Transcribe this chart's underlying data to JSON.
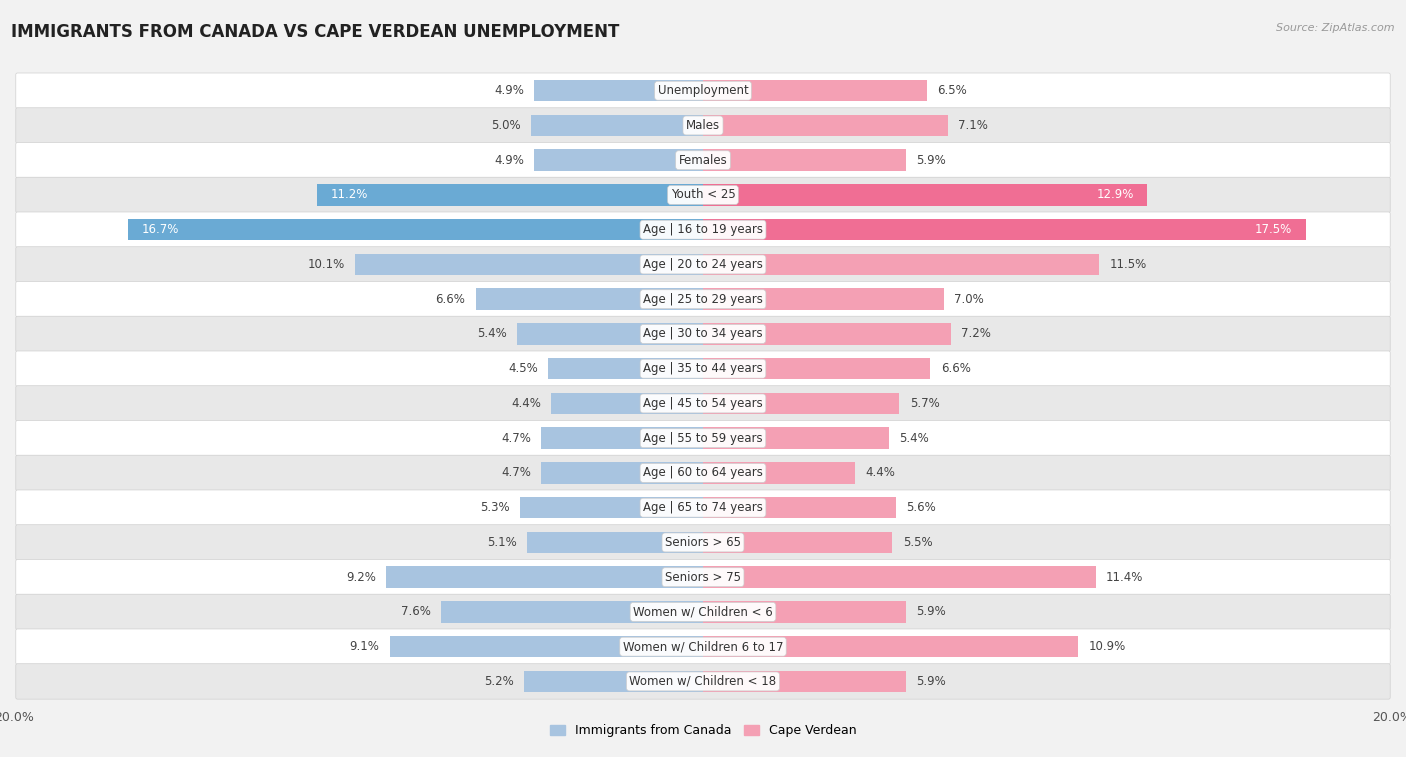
{
  "title": "IMMIGRANTS FROM CANADA VS CAPE VERDEAN UNEMPLOYMENT",
  "source": "Source: ZipAtlas.com",
  "categories": [
    "Unemployment",
    "Males",
    "Females",
    "Youth < 25",
    "Age | 16 to 19 years",
    "Age | 20 to 24 years",
    "Age | 25 to 29 years",
    "Age | 30 to 34 years",
    "Age | 35 to 44 years",
    "Age | 45 to 54 years",
    "Age | 55 to 59 years",
    "Age | 60 to 64 years",
    "Age | 65 to 74 years",
    "Seniors > 65",
    "Seniors > 75",
    "Women w/ Children < 6",
    "Women w/ Children 6 to 17",
    "Women w/ Children < 18"
  ],
  "canada_values": [
    4.9,
    5.0,
    4.9,
    11.2,
    16.7,
    10.1,
    6.6,
    5.4,
    4.5,
    4.4,
    4.7,
    4.7,
    5.3,
    5.1,
    9.2,
    7.6,
    9.1,
    5.2
  ],
  "capeverde_values": [
    6.5,
    7.1,
    5.9,
    12.9,
    17.5,
    11.5,
    7.0,
    7.2,
    6.6,
    5.7,
    5.4,
    4.4,
    5.6,
    5.5,
    11.4,
    5.9,
    10.9,
    5.9
  ],
  "canada_color": "#a8c4e0",
  "capeverde_color": "#f4a0b4",
  "canada_highlight_color": "#6aaad4",
  "capeverde_highlight_color": "#f06e94",
  "background_color": "#f2f2f2",
  "row_light": "#ffffff",
  "row_dark": "#e8e8e8",
  "row_border": "#d0d0d0",
  "axis_limit": 20.0,
  "label_fontsize": 8.5,
  "value_fontsize": 8.5,
  "title_fontsize": 12,
  "legend_canada": "Immigrants from Canada",
  "legend_capeverde": "Cape Verdean",
  "inside_label_rows": [
    3,
    4
  ],
  "highlight_rows": [
    3,
    4
  ]
}
